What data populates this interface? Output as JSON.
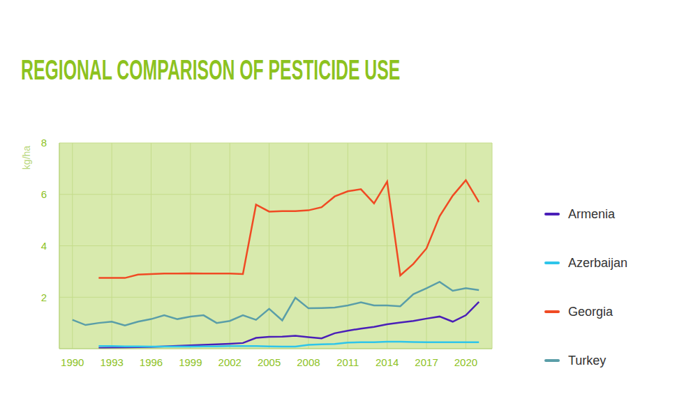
{
  "chart_data": {
    "type": "line",
    "title": "REGIONAL COMPARISON OF PESTICIDE USE",
    "y_label": "kg/ha",
    "x": [
      1990,
      1991,
      1992,
      1993,
      1994,
      1995,
      1996,
      1997,
      1998,
      1999,
      2000,
      2001,
      2002,
      2003,
      2004,
      2005,
      2006,
      2007,
      2008,
      2009,
      2010,
      2011,
      2012,
      2013,
      2014,
      2015,
      2016,
      2017,
      2018,
      2019,
      2020,
      2021
    ],
    "xlim": [
      1989,
      2022
    ],
    "xticks": [
      1990,
      1993,
      1996,
      1999,
      2002,
      2005,
      2008,
      2011,
      2014,
      2017,
      2020
    ],
    "ylim": [
      0,
      8
    ],
    "yticks": [
      2,
      4,
      6,
      8
    ],
    "grid": true,
    "legend": "right",
    "series": [
      {
        "name": "Armenia",
        "color": "#4a1fb8",
        "values": [
          null,
          null,
          0.03,
          0.04,
          0.05,
          0.06,
          0.07,
          0.09,
          0.11,
          0.13,
          0.15,
          0.17,
          0.19,
          0.22,
          0.42,
          0.46,
          0.47,
          0.5,
          0.45,
          0.4,
          0.6,
          0.7,
          0.78,
          0.85,
          0.95,
          1.02,
          1.08,
          1.17,
          1.25,
          1.05,
          1.3,
          1.82
        ]
      },
      {
        "name": "Azerbaijan",
        "color": "#2ec5ea",
        "values": [
          null,
          null,
          0.1,
          0.1,
          0.09,
          0.09,
          0.08,
          0.08,
          0.08,
          0.08,
          0.09,
          0.09,
          0.1,
          0.1,
          0.1,
          0.09,
          0.08,
          0.08,
          0.15,
          0.17,
          0.18,
          0.24,
          0.25,
          0.25,
          0.27,
          0.27,
          0.26,
          0.25,
          0.25,
          0.25,
          0.25,
          0.25
        ]
      },
      {
        "name": "Georgia",
        "color": "#f04a23",
        "values": [
          null,
          null,
          2.75,
          2.75,
          2.75,
          2.88,
          2.9,
          2.92,
          2.92,
          2.93,
          2.92,
          2.92,
          2.92,
          2.9,
          5.6,
          5.33,
          5.35,
          5.35,
          5.38,
          5.5,
          5.92,
          6.12,
          6.2,
          5.65,
          6.5,
          2.85,
          3.3,
          3.9,
          5.15,
          5.95,
          6.55,
          5.7
        ]
      },
      {
        "name": "Turkey",
        "color": "#5a9ea8",
        "values": [
          1.12,
          0.92,
          1.0,
          1.05,
          0.9,
          1.05,
          1.15,
          1.3,
          1.15,
          1.25,
          1.3,
          1.0,
          1.08,
          1.3,
          1.12,
          1.55,
          1.1,
          1.98,
          1.57,
          1.58,
          1.6,
          1.68,
          1.8,
          1.68,
          1.68,
          1.65,
          2.12,
          2.35,
          2.6,
          2.25,
          2.35,
          2.28
        ]
      }
    ]
  }
}
